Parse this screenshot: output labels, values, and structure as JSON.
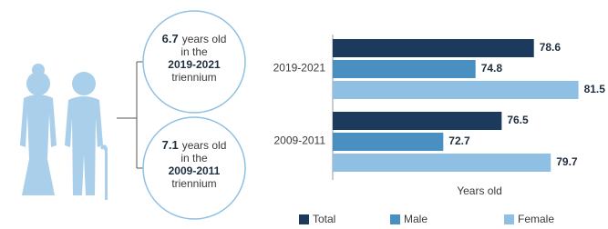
{
  "chart_data": {
    "type": "bar",
    "orientation": "horizontal",
    "categories": [
      "2019-2021",
      "2009-2011"
    ],
    "series": [
      {
        "name": "Total",
        "color": "#1b3a5c",
        "values": [
          78.6,
          76.5
        ]
      },
      {
        "name": "Male",
        "color": "#4a8fc2",
        "values": [
          74.8,
          72.7
        ]
      },
      {
        "name": "Female",
        "color": "#8fc0e3",
        "values": [
          81.5,
          79.7
        ]
      }
    ],
    "xlabel": "Years old",
    "xlim": [
      65.5,
      82
    ],
    "legend": "bottom",
    "annotations": [
      {
        "figure": 6.7,
        "unit": "years old",
        "connector": "in the",
        "period": "2019-2021",
        "suffix": "triennium"
      },
      {
        "figure": 7.1,
        "unit": "years old",
        "connector": "in the",
        "period": "2009-2011",
        "suffix": "triennium"
      }
    ]
  }
}
